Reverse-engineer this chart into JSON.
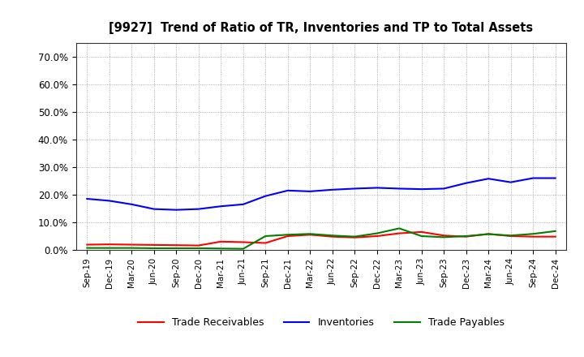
{
  "title": "[9927]  Trend of Ratio of TR, Inventories and TP to Total Assets",
  "x_labels": [
    "Sep-19",
    "Dec-19",
    "Mar-20",
    "Jun-20",
    "Sep-20",
    "Dec-20",
    "Mar-21",
    "Jun-21",
    "Sep-21",
    "Dec-21",
    "Mar-22",
    "Jun-22",
    "Sep-22",
    "Dec-22",
    "Mar-23",
    "Jun-23",
    "Sep-23",
    "Dec-23",
    "Mar-24",
    "Jun-24",
    "Sep-24",
    "Dec-24"
  ],
  "trade_receivables": [
    0.019,
    0.02,
    0.019,
    0.018,
    0.017,
    0.016,
    0.03,
    0.028,
    0.025,
    0.05,
    0.055,
    0.048,
    0.045,
    0.05,
    0.06,
    0.065,
    0.052,
    0.048,
    0.058,
    0.05,
    0.048,
    0.048
  ],
  "inventories": [
    0.185,
    0.178,
    0.165,
    0.148,
    0.145,
    0.148,
    0.158,
    0.165,
    0.195,
    0.215,
    0.212,
    0.218,
    0.222,
    0.225,
    0.222,
    0.22,
    0.222,
    0.242,
    0.258,
    0.245,
    0.26,
    0.26
  ],
  "trade_payables": [
    0.007,
    0.007,
    0.007,
    0.006,
    0.006,
    0.006,
    0.005,
    0.004,
    0.05,
    0.055,
    0.058,
    0.052,
    0.048,
    0.06,
    0.078,
    0.05,
    0.046,
    0.05,
    0.057,
    0.052,
    0.058,
    0.068
  ],
  "line_colors": {
    "trade_receivables": "#FF0000",
    "inventories": "#0000FF",
    "trade_payables": "#008000"
  },
  "ylim": [
    0.0,
    0.75
  ],
  "yticks": [
    0.0,
    0.1,
    0.2,
    0.3,
    0.4,
    0.5,
    0.6,
    0.7
  ],
  "ytick_labels": [
    "0.0%",
    "10.0%",
    "20.0%",
    "30.0%",
    "40.0%",
    "50.0%",
    "60.0%",
    "70.0%"
  ],
  "background_color": "#FFFFFF",
  "grid_color": "#999999",
  "legend_labels": [
    "Trade Receivables",
    "Inventories",
    "Trade Payables"
  ]
}
